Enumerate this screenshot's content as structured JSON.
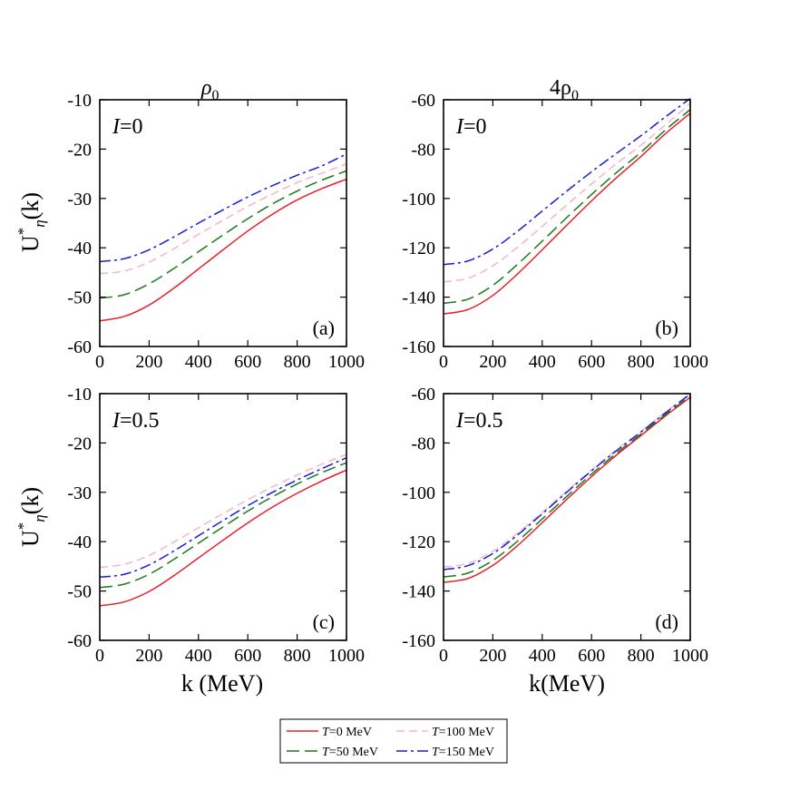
{
  "chart_data": {
    "type": "line",
    "column_titles": {
      "left": "ρ",
      "left_sub": "0",
      "right_pre": "4ρ",
      "right_sub": "0"
    },
    "x_axis": {
      "label": "k (MeV)",
      "label_right": "k(MeV)",
      "lim": [
        0,
        1000
      ],
      "ticks": [
        0,
        200,
        400,
        600,
        800,
        1000
      ]
    },
    "y_label": {
      "main": "U",
      "sup": "*",
      "sub": "η",
      "tail": "(k)"
    },
    "legend": {
      "placement": "bottom-center",
      "entries": [
        {
          "prefix": "T",
          "text": "=0 MeV"
        },
        {
          "prefix": "T",
          "text": "=100 MeV"
        },
        {
          "prefix": "T",
          "text": "=50 MeV"
        },
        {
          "prefix": "T",
          "text": "=150 MeV"
        }
      ]
    },
    "series_styles": [
      {
        "key": "T0",
        "color": "#e8202a",
        "dash": ""
      },
      {
        "key": "T50",
        "color": "#1a7a1a",
        "dash": "14,6"
      },
      {
        "key": "T100",
        "color": "#f4b6c8",
        "dash": "9,5"
      },
      {
        "key": "T150",
        "color": "#1a1adc",
        "dash": "12,4,3,4"
      }
    ],
    "x": [
      0,
      100,
      200,
      300,
      400,
      500,
      600,
      700,
      800,
      900,
      1000
    ],
    "panels": [
      {
        "id": "a",
        "tag": "(a)",
        "iso": "=0",
        "ylim": [
          -60,
          -10
        ],
        "yticks": [
          -60,
          -50,
          -40,
          -30,
          -20,
          -10
        ],
        "series": {
          "T0": [
            -54.8,
            -53.9,
            -51.6,
            -48.2,
            -44.3,
            -40.4,
            -36.6,
            -33.2,
            -30.3,
            -28.0,
            -26.1
          ],
          "T50": [
            -50.2,
            -49.5,
            -47.3,
            -44.2,
            -40.8,
            -37.4,
            -34.1,
            -31.1,
            -28.5,
            -26.3,
            -24.4
          ],
          "T100": [
            -45.2,
            -44.7,
            -42.9,
            -40.2,
            -37.3,
            -34.4,
            -31.6,
            -29.1,
            -26.8,
            -24.9,
            -23.0
          ],
          "T150": [
            -42.8,
            -42.2,
            -40.4,
            -37.8,
            -35.0,
            -32.3,
            -29.7,
            -27.4,
            -25.3,
            -23.4,
            -21.0
          ]
        }
      },
      {
        "id": "b",
        "tag": "(b)",
        "iso": "=0",
        "ylim": [
          -160,
          -60
        ],
        "yticks": [
          -160,
          -140,
          -120,
          -100,
          -80,
          -60
        ],
        "series": {
          "T0": [
            -146.8,
            -145.0,
            -139.3,
            -130.6,
            -120.8,
            -110.8,
            -101.0,
            -91.7,
            -83.0,
            -73.7,
            -65.5
          ],
          "T50": [
            -142.5,
            -140.8,
            -135.2,
            -126.7,
            -117.3,
            -107.7,
            -98.4,
            -89.6,
            -81.3,
            -72.2,
            -64.0
          ],
          "T100": [
            -133.8,
            -132.3,
            -127.3,
            -119.8,
            -111.3,
            -102.6,
            -94.1,
            -86.0,
            -78.4,
            -70.1,
            -61.5
          ],
          "T150": [
            -126.8,
            -125.3,
            -120.5,
            -113.3,
            -105.1,
            -97.0,
            -89.2,
            -81.8,
            -74.6,
            -66.9,
            -59.5
          ]
        }
      },
      {
        "id": "c",
        "tag": "(c)",
        "iso": "=0.5",
        "ylim": [
          -60,
          -10
        ],
        "yticks": [
          -60,
          -50,
          -40,
          -30,
          -20,
          -10
        ],
        "series": {
          "T0": [
            -53.0,
            -52.2,
            -50.1,
            -46.9,
            -43.3,
            -39.7,
            -36.2,
            -33.0,
            -30.2,
            -27.7,
            -25.5
          ],
          "T50": [
            -49.3,
            -48.6,
            -46.6,
            -43.6,
            -40.3,
            -37.0,
            -33.8,
            -30.9,
            -28.3,
            -26.0,
            -24.0
          ],
          "T100": [
            -45.2,
            -44.6,
            -42.8,
            -40.1,
            -37.2,
            -34.3,
            -31.5,
            -28.9,
            -26.5,
            -24.3,
            -22.3
          ],
          "T150": [
            -47.2,
            -46.6,
            -44.7,
            -41.9,
            -38.8,
            -35.7,
            -32.7,
            -30.0,
            -27.5,
            -25.2,
            -23.0
          ]
        }
      },
      {
        "id": "d",
        "tag": "(d)",
        "iso": "=0.5",
        "ylim": [
          -160,
          -60
        ],
        "yticks": [
          -160,
          -140,
          -120,
          -100,
          -80,
          -60
        ],
        "series": {
          "T0": [
            -136.5,
            -134.9,
            -129.6,
            -121.6,
            -112.3,
            -102.8,
            -93.6,
            -85.0,
            -77.0,
            -69.0,
            -61.5
          ],
          "T50": [
            -134.3,
            -132.7,
            -127.6,
            -119.8,
            -110.8,
            -101.6,
            -92.6,
            -84.2,
            -76.4,
            -68.5,
            -61.0
          ],
          "T100": [
            -130.3,
            -128.8,
            -123.9,
            -116.5,
            -108.1,
            -99.4,
            -90.9,
            -82.8,
            -75.3,
            -67.5,
            -60.0
          ],
          "T150": [
            -131.3,
            -129.7,
            -124.8,
            -117.3,
            -108.7,
            -99.9,
            -91.3,
            -83.2,
            -75.6,
            -67.8,
            -60.2
          ]
        }
      }
    ]
  }
}
